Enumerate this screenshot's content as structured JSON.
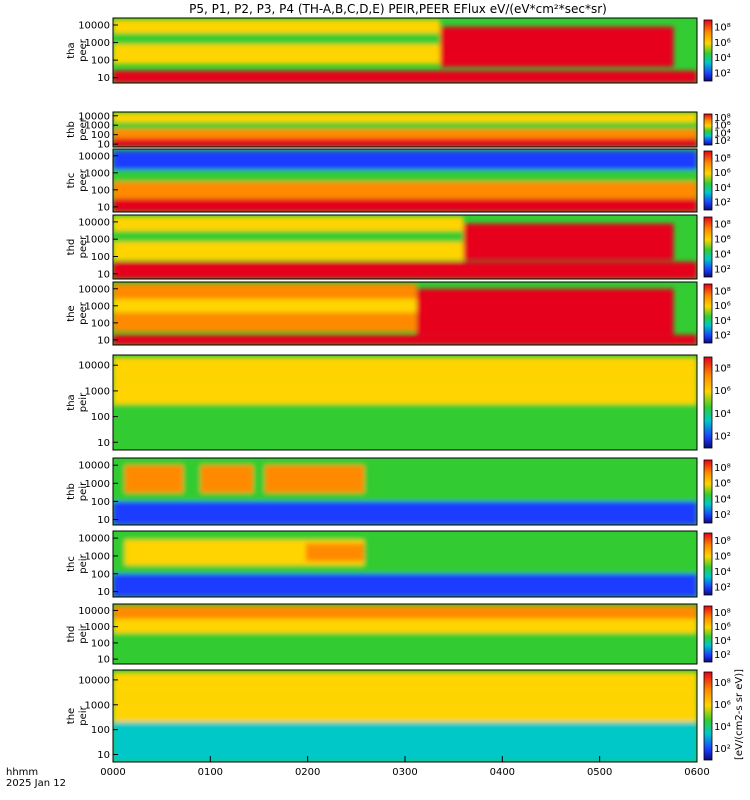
{
  "title": "P5, P1, P2, P3, P4 (TH-A,B,C,D,E) PEIR,PEER EFlux eV/(eV*cm²*sec*sr)",
  "time_axis": {
    "label": "hhmm",
    "date": "2025 Jan 12",
    "ticks": [
      "0000",
      "0100",
      "0200",
      "0300",
      "0400",
      "0500",
      "0600"
    ]
  },
  "y_ticks": [
    "10",
    "100",
    "1000",
    "10000"
  ],
  "colorbar": {
    "ticks": [
      "10²",
      "10⁴",
      "10⁶",
      "10⁸"
    ],
    "label": "[eV/(cm2-s sr eV)]"
  },
  "colors": {
    "red": "#e6001a",
    "orange": "#ff8a00",
    "yellow": "#ffd400",
    "green": "#33cc33",
    "cyan": "#00c8c8",
    "blue": "#1a3cff",
    "navy": "#0a0a7a",
    "black": "#000000"
  },
  "chart_data": {
    "type": "heatmap",
    "x_label": "hhmm",
    "x_ticks": [
      "0000",
      "0100",
      "0200",
      "0300",
      "0400",
      "0500",
      "0600"
    ],
    "y_scale": "log",
    "y_range": [
      5,
      25000
    ],
    "y_ticks": [
      10,
      100,
      1000,
      10000
    ],
    "colorbar_ticks": [
      "10²",
      "10⁴",
      "10⁶",
      "10⁸"
    ],
    "panels": [
      {
        "probe": "tha",
        "species": "peer",
        "bands": [
          {
            "x": [
              0.0,
              0.56
            ],
            "y": [
              3500,
              20000
            ],
            "color": "yellow"
          },
          {
            "x": [
              0.0,
              0.56
            ],
            "y": [
              800,
              3500
            ],
            "color": "green"
          },
          {
            "x": [
              0.0,
              0.56
            ],
            "y": [
              60,
              800
            ],
            "color": "yellow"
          },
          {
            "x": [
              0.0,
              1.0
            ],
            "y": [
              5,
              25
            ],
            "color": "red"
          },
          {
            "x": [
              0.56,
              0.96
            ],
            "y": [
              40,
              8000
            ],
            "color": "red"
          }
        ]
      },
      {
        "probe": "thb",
        "species": "peer",
        "bands": [
          {
            "x": [
              0.0,
              1.0
            ],
            "y": [
              2000,
              20000
            ],
            "color": "yellow"
          },
          {
            "x": [
              0.0,
              1.0
            ],
            "y": [
              400,
              2000
            ],
            "color": "green"
          },
          {
            "x": [
              0.0,
              1.0
            ],
            "y": [
              40,
              400
            ],
            "color": "orange"
          },
          {
            "x": [
              0.0,
              1.0
            ],
            "y": [
              5,
              40
            ],
            "color": "red"
          }
        ]
      },
      {
        "probe": "thc",
        "species": "peer",
        "bands": [
          {
            "x": [
              0.0,
              1.0
            ],
            "y": [
              1500,
              20000
            ],
            "color": "blue"
          },
          {
            "x": [
              0.0,
              1.0
            ],
            "y": [
              300,
              1500
            ],
            "color": "green"
          },
          {
            "x": [
              0.0,
              1.0
            ],
            "y": [
              30,
              300
            ],
            "color": "orange"
          },
          {
            "x": [
              0.0,
              1.0
            ],
            "y": [
              5,
              30
            ],
            "color": "red"
          }
        ]
      },
      {
        "probe": "thd",
        "species": "peer",
        "bands": [
          {
            "x": [
              0.0,
              0.6
            ],
            "y": [
              3000,
              20000
            ],
            "color": "yellow"
          },
          {
            "x": [
              0.0,
              0.6
            ],
            "y": [
              700,
              3000
            ],
            "color": "green"
          },
          {
            "x": [
              0.0,
              0.6
            ],
            "y": [
              60,
              700
            ],
            "color": "yellow"
          },
          {
            "x": [
              0.0,
              1.0
            ],
            "y": [
              5,
              50
            ],
            "color": "red"
          },
          {
            "x": [
              0.6,
              0.96
            ],
            "y": [
              60,
              8000
            ],
            "color": "red"
          }
        ]
      },
      {
        "probe": "the",
        "species": "peer",
        "bands": [
          {
            "x": [
              0.0,
              0.52
            ],
            "y": [
              2500,
              20000
            ],
            "color": "orange"
          },
          {
            "x": [
              0.0,
              0.52
            ],
            "y": [
              400,
              2500
            ],
            "color": "yellow"
          },
          {
            "x": [
              0.0,
              0.52
            ],
            "y": [
              30,
              400
            ],
            "color": "orange"
          },
          {
            "x": [
              0.0,
              1.0
            ],
            "y": [
              5,
              20
            ],
            "color": "red"
          },
          {
            "x": [
              0.52,
              0.96
            ],
            "y": [
              20,
              10000
            ],
            "color": "red"
          }
        ]
      },
      {
        "probe": "tha",
        "species": "peir",
        "bands": [
          {
            "x": [
              0.0,
              1.0
            ],
            "y": [
              3000,
              20000
            ],
            "color": "yellow"
          },
          {
            "x": [
              0.0,
              1.0
            ],
            "y": [
              300,
              3000
            ],
            "color": "yellow"
          },
          {
            "x": [
              0.0,
              1.0
            ],
            "y": [
              40,
              300
            ],
            "color": "green"
          },
          {
            "x": [
              0.0,
              1.0
            ],
            "y": [
              5,
              40
            ],
            "color": "green"
          }
        ]
      },
      {
        "probe": "thb",
        "species": "peir",
        "bands": [
          {
            "x": [
              0.0,
              1.0
            ],
            "y": [
              100,
              20000
            ],
            "color": "green"
          },
          {
            "x": [
              0.0,
              1.0
            ],
            "y": [
              5,
              100
            ],
            "color": "blue"
          },
          {
            "x": [
              0.02,
              0.12
            ],
            "y": [
              300,
              10000
            ],
            "color": "orange"
          },
          {
            "x": [
              0.15,
              0.24
            ],
            "y": [
              300,
              10000
            ],
            "color": "orange"
          },
          {
            "x": [
              0.26,
              0.43
            ],
            "y": [
              300,
              10000
            ],
            "color": "orange"
          }
        ]
      },
      {
        "probe": "thc",
        "species": "peir",
        "bands": [
          {
            "x": [
              0.0,
              1.0
            ],
            "y": [
              100,
              20000
            ],
            "color": "green"
          },
          {
            "x": [
              0.0,
              1.0
            ],
            "y": [
              5,
              100
            ],
            "color": "blue"
          },
          {
            "x": [
              0.02,
              0.43
            ],
            "y": [
              300,
              8000
            ],
            "color": "yellow"
          },
          {
            "x": [
              0.33,
              0.43
            ],
            "y": [
              500,
              5000
            ],
            "color": "orange"
          }
        ]
      },
      {
        "probe": "thd",
        "species": "peir",
        "bands": [
          {
            "x": [
              0.0,
              1.0
            ],
            "y": [
              3000,
              20000
            ],
            "color": "orange"
          },
          {
            "x": [
              0.0,
              1.0
            ],
            "y": [
              400,
              3000
            ],
            "color": "yellow"
          },
          {
            "x": [
              0.0,
              1.0
            ],
            "y": [
              5,
              400
            ],
            "color": "green"
          }
        ]
      },
      {
        "probe": "the",
        "species": "peir",
        "bands": [
          {
            "x": [
              0.0,
              1.0
            ],
            "y": [
              2000,
              20000
            ],
            "color": "yellow"
          },
          {
            "x": [
              0.0,
              1.0
            ],
            "y": [
              200,
              2000
            ],
            "color": "yellow"
          },
          {
            "x": [
              0.0,
              1.0
            ],
            "y": [
              5,
              200
            ],
            "color": "cyan"
          }
        ]
      }
    ]
  }
}
